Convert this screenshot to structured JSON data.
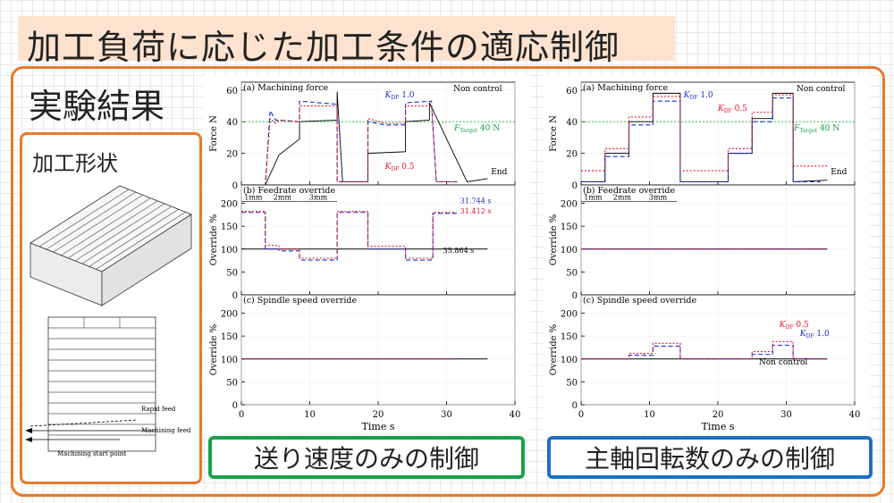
{
  "page": {
    "title": "加工負荷に応じた加工条件の適応制御",
    "results_label": "実験結果",
    "shape_label": "加工形状",
    "caption_left": "送り速度のみの制御",
    "caption_right": "主軸回転数のみの制御",
    "accent_orange": "#e87a2a",
    "accent_green": "#1aa04a",
    "accent_blue": "#1d6fc4"
  },
  "shape_drawing": {
    "labels": [
      "Rapid feed",
      "Machining feed",
      "Machining start point"
    ]
  },
  "chart_data": [
    {
      "type": "line",
      "panel": "feedrate-only",
      "xlabel": "Time  s",
      "xlim": [
        0,
        40
      ],
      "xticks": [
        0,
        10,
        20,
        30,
        40
      ],
      "subplots": [
        {
          "title": "(a) Machining force",
          "ylabel": "Force  N",
          "ylim": [
            0,
            65
          ],
          "yticks": [
            0,
            20,
            40,
            60
          ],
          "target_label": "F_Target 40 N",
          "target_value": 40,
          "series": [
            {
              "name": "Non control",
              "color": "#000000",
              "dash": "",
              "x": [
                0,
                3.5,
                5.5,
                5.5,
                8.5,
                8.5,
                14,
                14,
                14.8,
                18.5,
                18.5,
                24,
                24,
                27.5,
                27.5,
                33,
                36
              ],
              "y": [
                0,
                0,
                19,
                19,
                29,
                40,
                41,
                59,
                2,
                2,
                20,
                21,
                40,
                41,
                52,
                2,
                4
              ]
            },
            {
              "name": "K_DF 1.0",
              "color": "#1a2ecc",
              "dash": "5,3",
              "x": [
                0,
                3.5,
                4.2,
                5,
                5.5,
                8.5,
                8.5,
                14,
                14,
                15,
                18.5,
                18.5,
                21,
                24,
                24,
                27.8,
                28.5,
                31.7
              ],
              "y": [
                0,
                0,
                47,
                41,
                41,
                40,
                53,
                51,
                2,
                2,
                2,
                40,
                38,
                38,
                52,
                53,
                2,
                2
              ]
            },
            {
              "name": "K_DF 0.5",
              "color": "#e8132b",
              "dash": "2,2",
              "x": [
                0,
                3.5,
                4.2,
                5,
                5.5,
                8.5,
                8.5,
                14,
                14,
                15,
                18.5,
                18.5,
                21,
                24,
                24,
                27.8,
                28.5,
                31.4
              ],
              "y": [
                0,
                0,
                42,
                39,
                41,
                40,
                50,
                50,
                2,
                2,
                2,
                42,
                39,
                39,
                50,
                50,
                2,
                2
              ]
            }
          ],
          "legend_labels": {
            "non_control": "Non control",
            "kdf1": "K_DF 1.0",
            "kdf05": "K_DF 0.5",
            "end": "End"
          }
        },
        {
          "title": "(b) Feedrate override",
          "ylabel": "Override  %",
          "ylim": [
            0,
            240
          ],
          "yticks": [
            0,
            50,
            100,
            150,
            200
          ],
          "segment_labels": [
            "1mm",
            "2mm",
            "3mm"
          ],
          "end_times": {
            "kdf1": "31.744 s",
            "kdf05": "31.412 s",
            "non_control": "35.864 s"
          },
          "series": [
            {
              "name": "Non control",
              "color": "#000000",
              "dash": "",
              "x": [
                0,
                36
              ],
              "y": [
                100,
                100
              ]
            },
            {
              "name": "K_DF 1.0",
              "color": "#1a2ecc",
              "dash": "5,3",
              "x": [
                0,
                3.5,
                3.5,
                5.5,
                5.5,
                8.5,
                8.5,
                14,
                14,
                18.5,
                18.5,
                24,
                24,
                28,
                28,
                31.7
              ],
              "y": [
                180,
                180,
                100,
                100,
                96,
                96,
                76,
                76,
                180,
                180,
                100,
                100,
                76,
                76,
                178,
                178
              ]
            },
            {
              "name": "K_DF 0.5",
              "color": "#e8132b",
              "dash": "2,2",
              "x": [
                0,
                3.5,
                3.5,
                5.5,
                5.5,
                8.5,
                8.5,
                14,
                14,
                18.5,
                18.5,
                24,
                24,
                28,
                28,
                31.4
              ],
              "y": [
                182,
                182,
                108,
                108,
                100,
                100,
                80,
                80,
                182,
                182,
                106,
                106,
                80,
                80,
                180,
                180
              ]
            }
          ]
        },
        {
          "title": "(c) Spindle speed override",
          "ylabel": "Override  %",
          "ylim": [
            0,
            240
          ],
          "yticks": [
            0,
            50,
            100,
            150,
            200
          ],
          "series": [
            {
              "name": "Non control",
              "color": "#000000",
              "dash": "",
              "x": [
                0,
                36
              ],
              "y": [
                100,
                100
              ]
            },
            {
              "name": "K_DF 1.0",
              "color": "#1a2ecc",
              "dash": "5,3",
              "x": [
                0,
                31.7
              ],
              "y": [
                100,
                100
              ]
            },
            {
              "name": "K_DF 0.5",
              "color": "#e8132b",
              "dash": "2,2",
              "x": [
                0,
                31.4
              ],
              "y": [
                100,
                100
              ]
            }
          ]
        }
      ]
    },
    {
      "type": "line",
      "panel": "spindle-only",
      "xlabel": "Time  s",
      "xlim": [
        0,
        40
      ],
      "xticks": [
        0,
        10,
        20,
        30,
        40
      ],
      "subplots": [
        {
          "title": "(a) Machining force",
          "ylabel": "Force  N",
          "ylim": [
            0,
            65
          ],
          "yticks": [
            0,
            20,
            40,
            60
          ],
          "target_label": "F_Target 40 N",
          "target_value": 40,
          "series": [
            {
              "name": "Non control",
              "color": "#000000",
              "dash": "",
              "x": [
                0,
                3.5,
                3.5,
                7,
                7,
                10.5,
                10.5,
                14.5,
                14.5,
                21.5,
                21.5,
                25,
                25,
                28,
                28,
                31,
                31,
                36
              ],
              "y": [
                2,
                2,
                20,
                20,
                40,
                40,
                58,
                58,
                2,
                2,
                20,
                20,
                42,
                42,
                58,
                58,
                2,
                3
              ]
            },
            {
              "name": "K_DF 1.0",
              "color": "#1a2ecc",
              "dash": "5,3",
              "x": [
                0,
                3.5,
                3.5,
                7,
                7,
                10.5,
                10.5,
                14.5,
                14.5,
                21.5,
                21.5,
                25,
                25,
                28,
                28,
                31,
                31,
                35
              ],
              "y": [
                2,
                2,
                18,
                18,
                38,
                38,
                53,
                53,
                2,
                2,
                20,
                20,
                40,
                40,
                55,
                55,
                2,
                2
              ]
            },
            {
              "name": "K_DF 0.5",
              "color": "#e8132b",
              "dash": "2,2",
              "x": [
                0,
                3.5,
                3.5,
                7,
                7,
                10.5,
                10.5,
                14.5,
                14.5,
                21.5,
                21.5,
                25,
                25,
                28,
                28,
                31,
                31,
                36
              ],
              "y": [
                9,
                9,
                23,
                23,
                43,
                43,
                56,
                56,
                9,
                9,
                23,
                23,
                46,
                46,
                57,
                57,
                12,
                12
              ]
            }
          ],
          "legend_labels": {
            "non_control": "Non control",
            "kdf1": "K_DF 1.0",
            "kdf05": "K_DF 0.5",
            "end": "End"
          }
        },
        {
          "title": "(b) Feedrate override",
          "ylabel": "Override  %",
          "ylim": [
            0,
            240
          ],
          "yticks": [
            0,
            50,
            100,
            150,
            200
          ],
          "segment_labels": [
            "1mm",
            "2mm",
            "3mm"
          ],
          "series": [
            {
              "name": "Non control",
              "color": "#000000",
              "dash": "",
              "x": [
                0,
                36
              ],
              "y": [
                100,
                100
              ]
            },
            {
              "name": "K_DF 1.0",
              "color": "#1a2ecc",
              "dash": "5,3",
              "x": [
                0,
                36
              ],
              "y": [
                100,
                100
              ]
            },
            {
              "name": "K_DF 0.5",
              "color": "#e8132b",
              "dash": "2,2",
              "x": [
                0,
                36
              ],
              "y": [
                100,
                100
              ]
            }
          ]
        },
        {
          "title": "(c) Spindle speed override",
          "ylabel": "Override  %",
          "ylim": [
            0,
            240
          ],
          "yticks": [
            0,
            50,
            100,
            150,
            200
          ],
          "series": [
            {
              "name": "Non control",
              "color": "#000000",
              "dash": "",
              "x": [
                0,
                36
              ],
              "y": [
                100,
                100
              ]
            },
            {
              "name": "K_DF 1.0",
              "color": "#1a2ecc",
              "dash": "5,3",
              "x": [
                0,
                7,
                7,
                10.5,
                10.5,
                14.5,
                14.5,
                25,
                25,
                28,
                28,
                31,
                31,
                36
              ],
              "y": [
                100,
                100,
                108,
                108,
                128,
                128,
                100,
                100,
                110,
                110,
                130,
                130,
                100,
                100
              ]
            },
            {
              "name": "K_DF 0.5",
              "color": "#e8132b",
              "dash": "2,2",
              "x": [
                0,
                7,
                7,
                10.5,
                10.5,
                14.5,
                14.5,
                25,
                25,
                28,
                28,
                31,
                31,
                36
              ],
              "y": [
                100,
                100,
                112,
                112,
                134,
                134,
                100,
                100,
                116,
                116,
                138,
                138,
                100,
                100
              ]
            }
          ],
          "legend_labels": {
            "non_control": "Non control",
            "kdf1": "K_DF 1.0",
            "kdf05": "K_DF 0.5"
          }
        }
      ]
    }
  ]
}
